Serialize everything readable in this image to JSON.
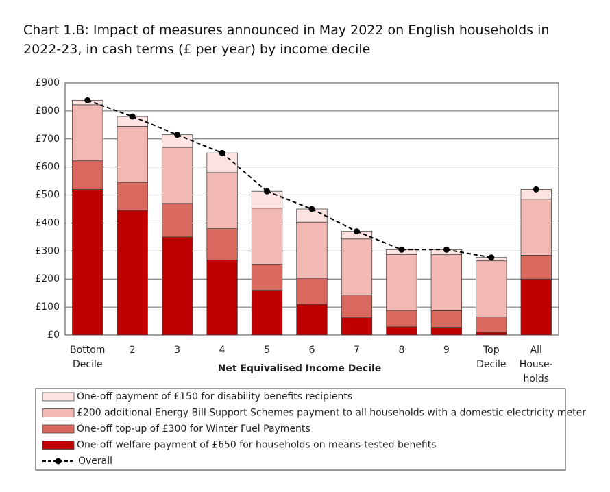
{
  "chart_data": {
    "type": "stacked-bar",
    "title": "Chart 1.B: Impact of measures announced in May 2022 on English households in 2022-23, in cash terms (£ per year) by income decile",
    "x_label": "Net Equivalised Income Decile",
    "categories": [
      "Bottom\nDecile",
      "2",
      "3",
      "4",
      "5",
      "6",
      "7",
      "8",
      "9",
      "Top\nDecile",
      "All\nHouse-\nholds"
    ],
    "series": [
      {
        "name": "One-off welfare payment of £650 for households on means-tested benefits",
        "color": "#c00000",
        "values": [
          520,
          445,
          350,
          268,
          160,
          110,
          62,
          30,
          28,
          10,
          200
        ]
      },
      {
        "name": "One-off  top-up of £300 for Winter Fuel Payments",
        "color": "#d9695f",
        "values": [
          102,
          100,
          120,
          112,
          93,
          93,
          81,
          58,
          59,
          55,
          85
        ]
      },
      {
        "name": "£200 additional Energy Bill Support Schemes payment to all households with a domestic electricity meter",
        "color": "#f2b8b4",
        "values": [
          200,
          200,
          200,
          200,
          200,
          200,
          200,
          200,
          200,
          200,
          200
        ]
      },
      {
        "name": "One-off payment of £150 for  disability benefits  recipients",
        "color": "#fde3e1",
        "values": [
          16,
          35,
          45,
          70,
          60,
          47,
          27,
          17,
          18,
          12,
          35
        ]
      }
    ],
    "overall": {
      "name": "Overall",
      "color": "#000000",
      "values": [
        838,
        780,
        715,
        650,
        513,
        450,
        370,
        305,
        305,
        277,
        520
      ]
    },
    "ylim": [
      0,
      900
    ],
    "yticks": [
      {
        "value": 0,
        "label": "£0"
      },
      {
        "value": 100,
        "label": "£100"
      },
      {
        "value": 200,
        "label": "£200"
      },
      {
        "value": 300,
        "label": "£300"
      },
      {
        "value": 400,
        "label": "£400"
      },
      {
        "value": 500,
        "label": "£500"
      },
      {
        "value": 600,
        "label": "£600"
      },
      {
        "value": 700,
        "label": "£700"
      },
      {
        "value": 800,
        "label": "£800"
      },
      {
        "value": 900,
        "label": "£900"
      }
    ],
    "grid": true
  }
}
